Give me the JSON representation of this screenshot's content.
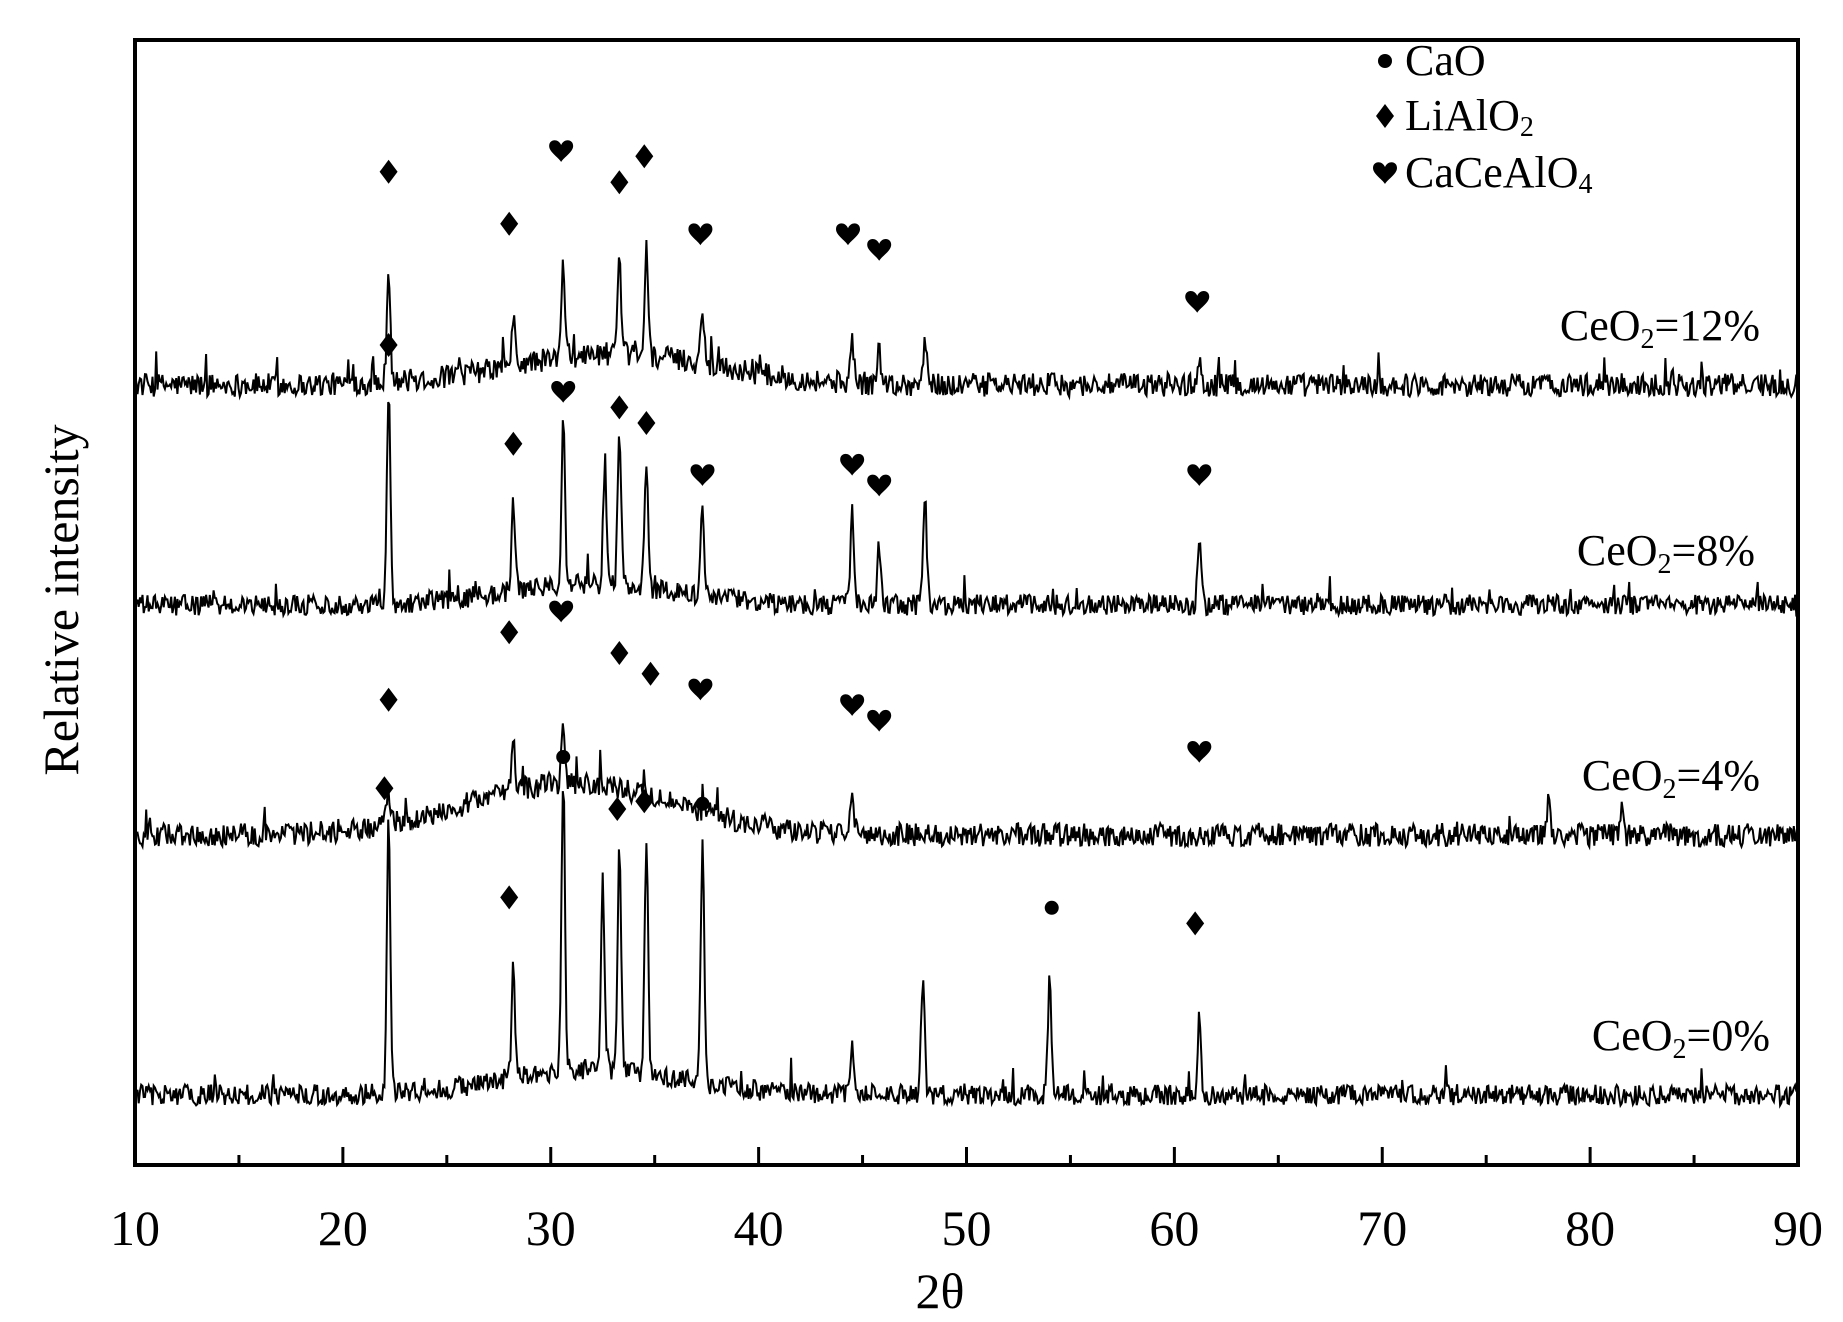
{
  "chart_data": {
    "type": "line",
    "title": "",
    "xlabel": "2θ",
    "ylabel": "Relative intensity",
    "xlim": [
      10,
      90
    ],
    "x_ticks": [
      10,
      20,
      30,
      40,
      50,
      60,
      70,
      80,
      90
    ],
    "y_ticks_shown": false,
    "grid": false,
    "legend": {
      "position": "top-right",
      "entries": [
        {
          "marker": "circle",
          "label": "CaO"
        },
        {
          "marker": "diamond",
          "label": "LiAlO2"
        },
        {
          "marker": "heart",
          "label": "CaCeAlO4"
        }
      ]
    },
    "series": [
      {
        "name": "CeO2=12%",
        "label_text": "CeO",
        "label_sub": "2",
        "label_value": "=12%",
        "baseline": 0.15,
        "noise": 0.045,
        "hump": {
          "center": 33,
          "height": 0.12,
          "width": 7
        },
        "peaks": [
          {
            "x": 22.2,
            "h": 0.45
          },
          {
            "x": 28.2,
            "h": 0.17
          },
          {
            "x": 30.6,
            "h": 0.35
          },
          {
            "x": 33.3,
            "h": 0.34
          },
          {
            "x": 34.6,
            "h": 0.41
          },
          {
            "x": 37.3,
            "h": 0.22
          },
          {
            "x": 44.5,
            "h": 0.17
          },
          {
            "x": 45.8,
            "h": 0.13
          },
          {
            "x": 48.0,
            "h": 0.17
          },
          {
            "x": 61.2,
            "h": 0.09
          }
        ],
        "markers": [
          {
            "x": 22.2,
            "shape": "diamond",
            "h": 0.82
          },
          {
            "x": 28.0,
            "shape": "diamond",
            "h": 0.62
          },
          {
            "x": 30.5,
            "shape": "heart",
            "h": 0.9
          },
          {
            "x": 33.3,
            "shape": "diamond",
            "h": 0.78
          },
          {
            "x": 34.5,
            "shape": "diamond",
            "h": 0.88
          },
          {
            "x": 37.2,
            "shape": "heart",
            "h": 0.58
          },
          {
            "x": 44.3,
            "shape": "heart",
            "h": 0.58
          },
          {
            "x": 45.8,
            "shape": "heart",
            "h": 0.52
          },
          {
            "x": 61.1,
            "shape": "heart",
            "h": 0.32
          }
        ]
      },
      {
        "name": "CeO2=8%",
        "label_text": "CeO",
        "label_sub": "2",
        "label_value": "=8%",
        "baseline": 0.15,
        "noise": 0.04,
        "hump": {
          "center": 32,
          "height": 0.08,
          "width": 6
        },
        "peaks": [
          {
            "x": 22.2,
            "h": 0.82
          },
          {
            "x": 28.2,
            "h": 0.34
          },
          {
            "x": 30.6,
            "h": 0.62
          },
          {
            "x": 32.6,
            "h": 0.45
          },
          {
            "x": 33.3,
            "h": 0.6
          },
          {
            "x": 34.6,
            "h": 0.5
          },
          {
            "x": 37.3,
            "h": 0.33
          },
          {
            "x": 44.5,
            "h": 0.35
          },
          {
            "x": 45.8,
            "h": 0.23
          },
          {
            "x": 48.0,
            "h": 0.42
          },
          {
            "x": 61.2,
            "h": 0.27
          }
        ],
        "markers": [
          {
            "x": 22.2,
            "shape": "diamond",
            "h": 1.0
          },
          {
            "x": 28.2,
            "shape": "diamond",
            "h": 0.62
          },
          {
            "x": 30.6,
            "shape": "heart",
            "h": 0.82
          },
          {
            "x": 33.3,
            "shape": "diamond",
            "h": 0.76
          },
          {
            "x": 34.6,
            "shape": "diamond",
            "h": 0.7
          },
          {
            "x": 37.3,
            "shape": "heart",
            "h": 0.5
          },
          {
            "x": 44.5,
            "shape": "heart",
            "h": 0.54
          },
          {
            "x": 45.8,
            "shape": "heart",
            "h": 0.46
          },
          {
            "x": 61.2,
            "shape": "heart",
            "h": 0.5
          }
        ]
      },
      {
        "name": "CeO2=4%",
        "label_text": "CeO",
        "label_sub": "2",
        "label_value": "=4%",
        "baseline": 0.15,
        "noise": 0.045,
        "hump": {
          "center": 31,
          "height": 0.2,
          "width": 7
        },
        "peaks": [
          {
            "x": 22.2,
            "h": 0.12
          },
          {
            "x": 28.2,
            "h": 0.22
          },
          {
            "x": 30.6,
            "h": 0.2
          },
          {
            "x": 44.5,
            "h": 0.15
          },
          {
            "x": 78.0,
            "h": 0.12
          },
          {
            "x": 81.5,
            "h": 0.1
          }
        ],
        "markers": [
          {
            "x": 22.2,
            "shape": "diamond",
            "h": 0.52
          },
          {
            "x": 28.0,
            "shape": "diamond",
            "h": 0.78
          },
          {
            "x": 30.5,
            "shape": "heart",
            "h": 0.86
          },
          {
            "x": 33.3,
            "shape": "diamond",
            "h": 0.7
          },
          {
            "x": 34.8,
            "shape": "diamond",
            "h": 0.62
          },
          {
            "x": 37.2,
            "shape": "heart",
            "h": 0.56
          },
          {
            "x": 44.5,
            "shape": "heart",
            "h": 0.5
          },
          {
            "x": 45.8,
            "shape": "heart",
            "h": 0.44
          },
          {
            "x": 61.2,
            "shape": "heart",
            "h": 0.32
          }
        ]
      },
      {
        "name": "CeO2=0%",
        "label_text": "CeO",
        "label_sub": "2",
        "label_value": "=0%",
        "baseline": 0.15,
        "noise": 0.04,
        "hump": {
          "center": 32,
          "height": 0.1,
          "width": 6
        },
        "peaks": [
          {
            "x": 22.2,
            "h": 1.05
          },
          {
            "x": 28.2,
            "h": 0.42
          },
          {
            "x": 30.6,
            "h": 1.12
          },
          {
            "x": 32.5,
            "h": 0.72
          },
          {
            "x": 33.3,
            "h": 0.85
          },
          {
            "x": 34.6,
            "h": 0.88
          },
          {
            "x": 37.3,
            "h": 0.9
          },
          {
            "x": 44.5,
            "h": 0.18
          },
          {
            "x": 47.9,
            "h": 0.46
          },
          {
            "x": 54.0,
            "h": 0.45
          },
          {
            "x": 61.2,
            "h": 0.3
          }
        ],
        "markers": [
          {
            "x": 22.0,
            "shape": "diamond",
            "h": 1.18
          },
          {
            "x": 28.0,
            "shape": "diamond",
            "h": 0.76
          },
          {
            "x": 30.6,
            "shape": "circle",
            "h": 1.3
          },
          {
            "x": 33.2,
            "shape": "diamond",
            "h": 1.1
          },
          {
            "x": 34.5,
            "shape": "diamond",
            "h": 1.13
          },
          {
            "x": 37.3,
            "shape": "circle",
            "h": 1.12
          },
          {
            "x": 54.1,
            "shape": "circle",
            "h": 0.72
          },
          {
            "x": 61.0,
            "shape": "diamond",
            "h": 0.66
          }
        ]
      }
    ]
  }
}
